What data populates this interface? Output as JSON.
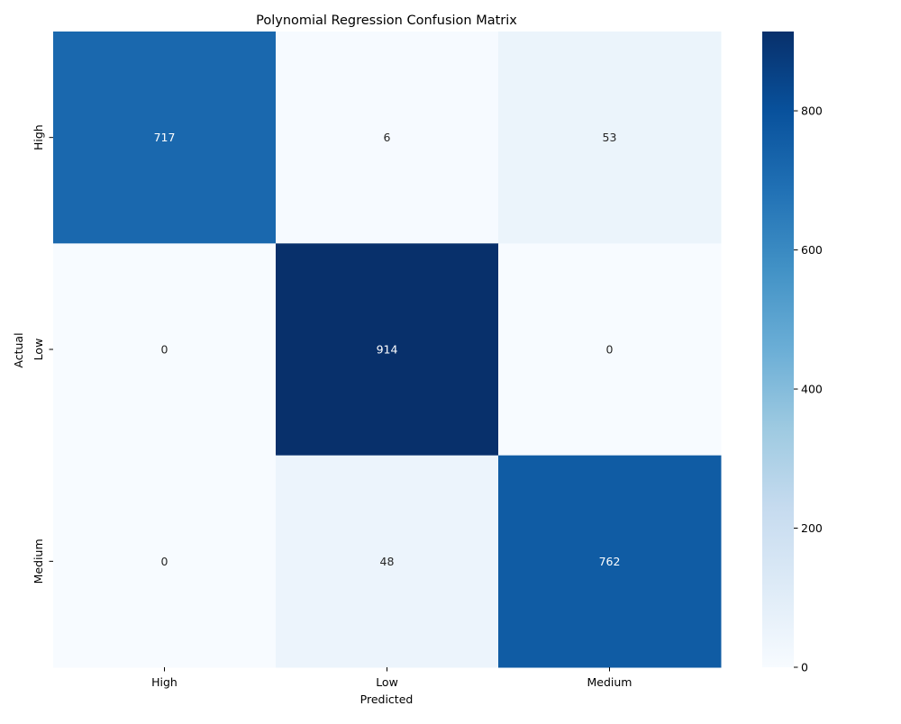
{
  "chart_data": {
    "type": "heatmap",
    "title": "Polynomial Regression Confusion Matrix",
    "xlabel": "Predicted",
    "ylabel": "Actual",
    "x_categories": [
      "High",
      "Low",
      "Medium"
    ],
    "y_categories": [
      "High",
      "Low",
      "Medium"
    ],
    "values": [
      [
        717,
        6,
        53
      ],
      [
        0,
        914,
        0
      ],
      [
        0,
        48,
        762
      ]
    ],
    "colormap": "Blues",
    "color_range": [
      0,
      914
    ],
    "colorbar": {
      "ticks": [
        0,
        200,
        400,
        600,
        800
      ]
    },
    "annotation_colors": {
      "light_text": "#ffffff",
      "dark_text": "#262626"
    },
    "colormap_stops": [
      "#f7fbff",
      "#deebf7",
      "#c6dbef",
      "#9ecae1",
      "#6baed6",
      "#4292c6",
      "#2171b5",
      "#08519c",
      "#08306b"
    ]
  }
}
